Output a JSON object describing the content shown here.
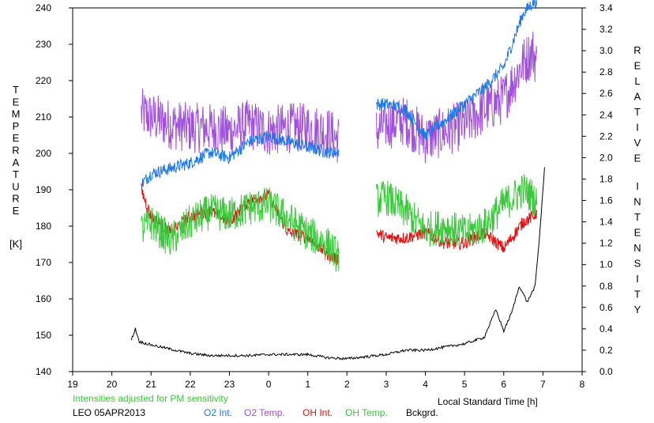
{
  "chart_data": {
    "type": "line",
    "station_date": "LEO 05APR2013",
    "note": "Intensities adjusted for PM sensitivity",
    "xlabel": "Local Standard Time [h]",
    "ylabel_left": "TEMPERATURE",
    "ylabel_left_unit": "[K]",
    "ylabel_right": "RELATIVE INTENSITY",
    "x_ticks": [
      "19",
      "20",
      "21",
      "22",
      "23",
      "0",
      "1",
      "2",
      "3",
      "4",
      "5",
      "6",
      "7",
      "8"
    ],
    "y_left_ticks": [
      "140",
      "150",
      "160",
      "170",
      "180",
      "190",
      "200",
      "210",
      "220",
      "230",
      "240"
    ],
    "y_right_ticks": [
      "0.0",
      "0.2",
      "0.4",
      "0.6",
      "0.8",
      "1.0",
      "1.2",
      "1.4",
      "1.6",
      "1.8",
      "2.0",
      "2.2",
      "2.4",
      "2.6",
      "2.8",
      "3.0",
      "3.2",
      "3.4"
    ],
    "xlim": [
      19,
      32
    ],
    "ylim_left": [
      140,
      240
    ],
    "ylim_right": [
      0,
      3.4
    ],
    "legend": [
      {
        "label": "O2 Int.",
        "color": "#1e78e6"
      },
      {
        "label": "O2 Temp.",
        "color": "#a050dc"
      },
      {
        "label": "OH Int.",
        "color": "#e01010"
      },
      {
        "label": "OH Temp.",
        "color": "#3cc83c"
      },
      {
        "label": "Bckgrd.",
        "color": "#000000"
      }
    ],
    "note_color": "#3cc83c",
    "series": [
      {
        "name": "O2 Temp.",
        "axis": "left",
        "color": "#a050dc",
        "x": [
          20.75,
          21,
          21.5,
          22,
          22.5,
          23,
          23.5,
          24,
          24.5,
          25,
          25.5,
          25.75,
          26.75,
          27,
          27.5,
          28,
          28.5,
          29,
          29.5,
          30,
          30.5,
          30.75,
          30.85
        ],
        "y": [
          211,
          210,
          208,
          207,
          207,
          206,
          208,
          206,
          207,
          207,
          206,
          204,
          206,
          208,
          209,
          204,
          206,
          208,
          212,
          215,
          225,
          228,
          224
        ]
      },
      {
        "name": "O2 Int.",
        "axis": "right",
        "color": "#1e78e6",
        "x": [
          20.75,
          21,
          21.5,
          22,
          22.5,
          23,
          23.5,
          24,
          24.5,
          25,
          25.5,
          25.75,
          26.75,
          27,
          27.5,
          28,
          28.5,
          29,
          29.5,
          30,
          30.5,
          30.75,
          30.85
        ],
        "y": [
          1.75,
          1.85,
          1.9,
          1.95,
          2.05,
          2.0,
          2.15,
          2.2,
          2.15,
          2.1,
          2.05,
          2.05,
          2.5,
          2.5,
          2.45,
          2.2,
          2.35,
          2.5,
          2.65,
          2.85,
          3.35,
          3.45,
          3.45
        ]
      },
      {
        "name": "OH Int.",
        "axis": "right",
        "color": "#e01010",
        "x": [
          20.75,
          21,
          21.5,
          22,
          22.5,
          23,
          23.5,
          24,
          24.5,
          25,
          25.5,
          25.75,
          26.75,
          27,
          27.5,
          28,
          28.5,
          29,
          29.5,
          30,
          30.5,
          30.75,
          30.85
        ],
        "y": [
          1.7,
          1.45,
          1.3,
          1.45,
          1.5,
          1.4,
          1.6,
          1.65,
          1.3,
          1.25,
          1.1,
          1.05,
          1.3,
          1.25,
          1.25,
          1.3,
          1.2,
          1.2,
          1.3,
          1.15,
          1.4,
          1.45,
          1.5
        ]
      },
      {
        "name": "OH Temp.",
        "axis": "left",
        "color": "#3cc83c",
        "x": [
          20.75,
          21,
          21.5,
          22,
          22.5,
          23,
          23.5,
          24,
          24.5,
          25,
          25.5,
          25.75,
          26.75,
          27,
          27.5,
          28,
          28.5,
          29,
          29.5,
          30,
          30.5,
          30.75,
          30.85
        ],
        "y": [
          179,
          181,
          176,
          181,
          184,
          183,
          185,
          186,
          182,
          178,
          175,
          172,
          187,
          188,
          184,
          179,
          180,
          178,
          180,
          186,
          190,
          188,
          186
        ]
      },
      {
        "name": "Bckgrd.",
        "axis": "right",
        "color": "#000000",
        "x": [
          20.5,
          20.6,
          20.7,
          21,
          21.5,
          22,
          22.5,
          23,
          23.5,
          24,
          24.5,
          25,
          25.5,
          26,
          26.5,
          27,
          27.5,
          28,
          28.5,
          29,
          29.5,
          29.8,
          30,
          30.2,
          30.4,
          30.6,
          30.8,
          30.9,
          31.05
        ],
        "y": [
          0.3,
          0.4,
          0.28,
          0.25,
          0.21,
          0.17,
          0.15,
          0.15,
          0.15,
          0.16,
          0.16,
          0.16,
          0.13,
          0.12,
          0.14,
          0.16,
          0.2,
          0.2,
          0.23,
          0.26,
          0.32,
          0.58,
          0.38,
          0.55,
          0.8,
          0.65,
          0.8,
          1.2,
          1.95
        ]
      }
    ]
  }
}
